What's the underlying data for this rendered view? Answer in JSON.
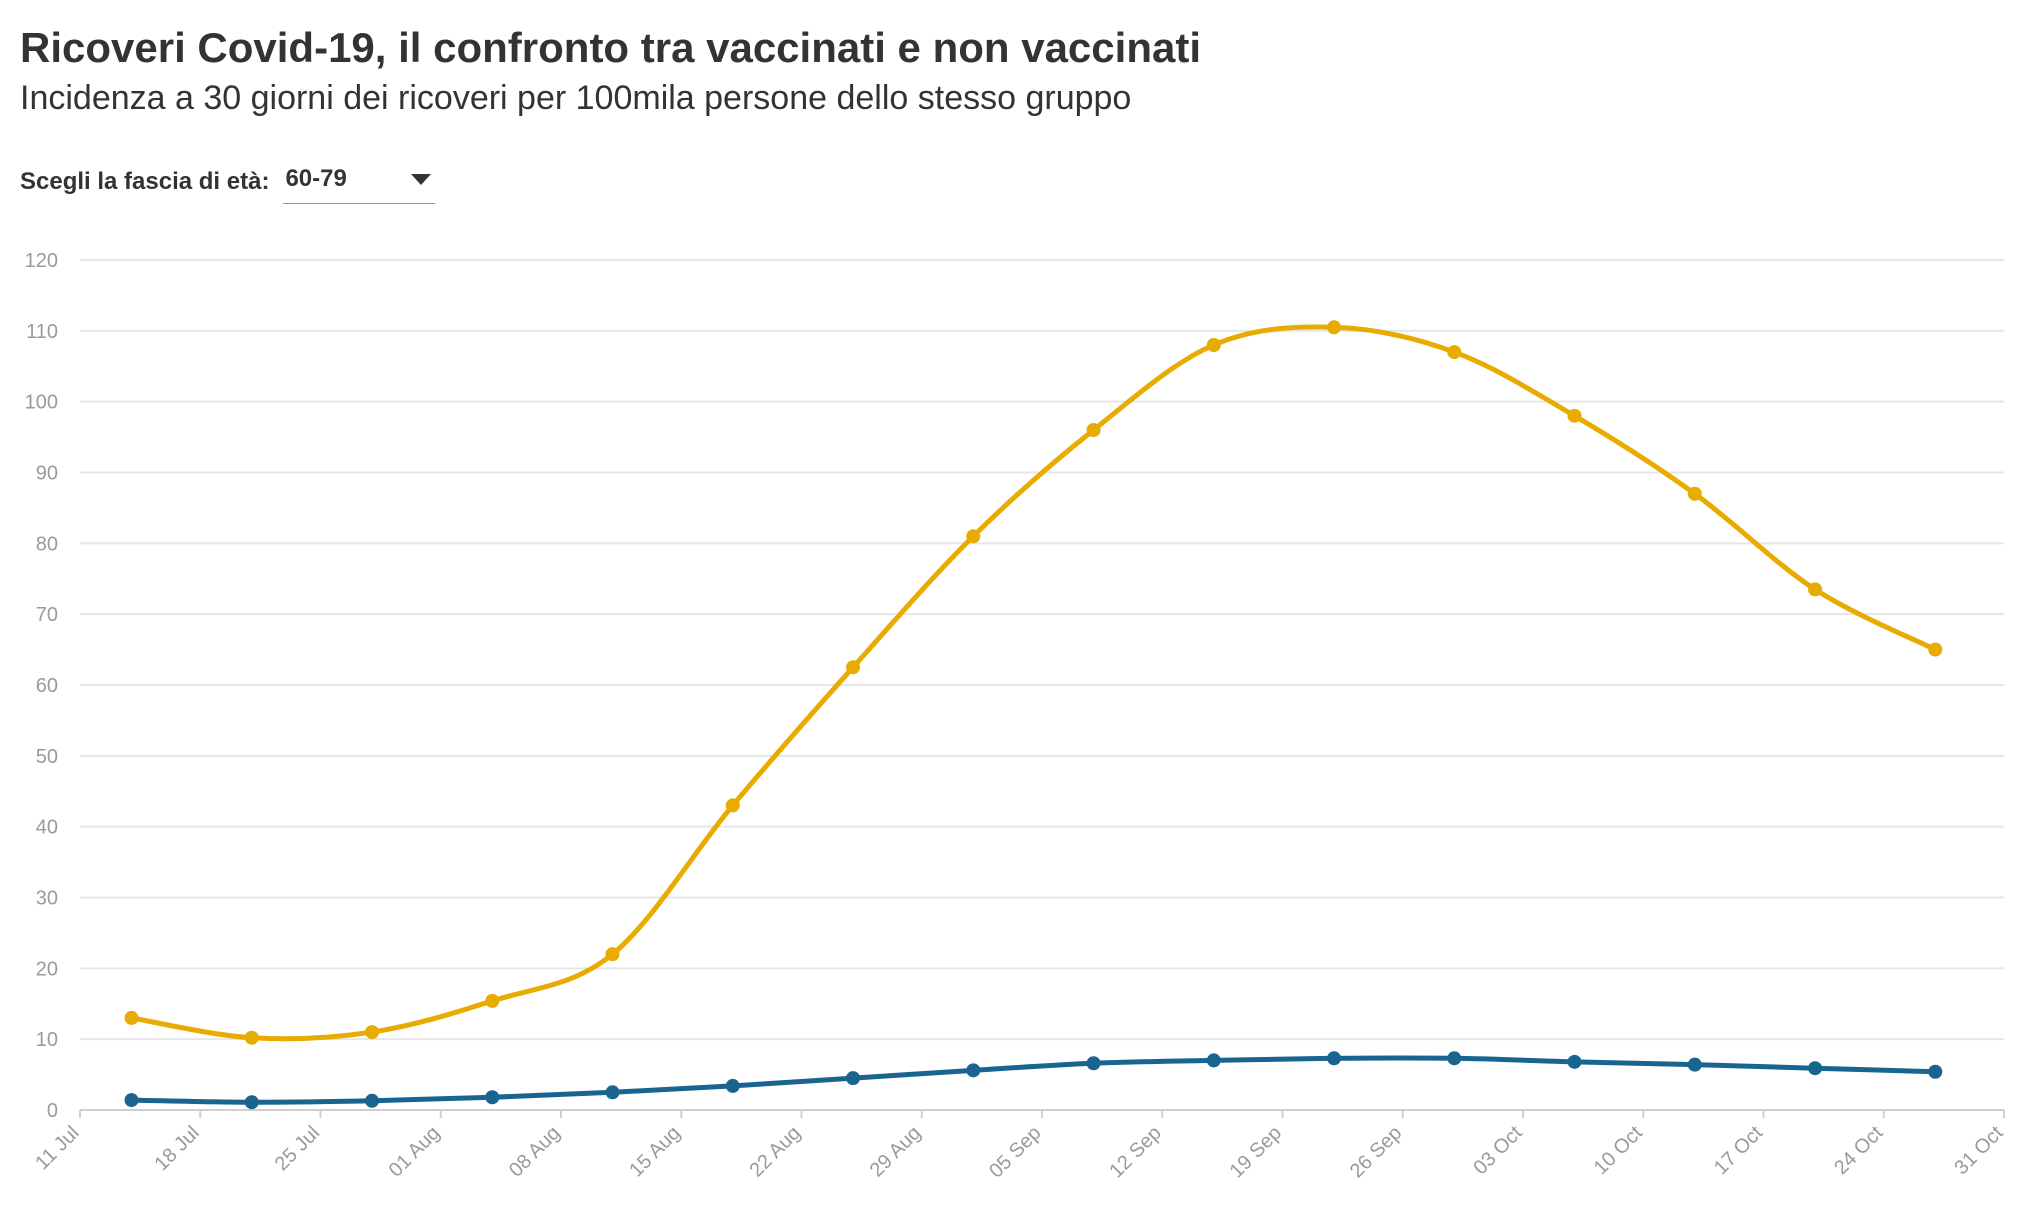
{
  "header": {
    "title": "Ricoveri Covid-19, il confronto tra vaccinati e non vaccinati",
    "subtitle": "Incidenza a 30 giorni dei ricoveri per 100mila persone dello stesso gruppo"
  },
  "control": {
    "label": "Scegli la fascia di età:",
    "selected": "60-79",
    "icon": "chevron-down-icon"
  },
  "colors": {
    "unvaccinated": "#e8ab00",
    "vaccinated": "#1a6490",
    "grid": "#e6e6e6",
    "axis": "#cfcfcf",
    "tick_text": "#9a9a9a"
  },
  "chart_data": {
    "type": "line",
    "x_axis": {
      "ticks": [
        "11 Jul",
        "18 Jul",
        "25 Jul",
        "01 Aug",
        "08 Aug",
        "15 Aug",
        "22 Aug",
        "29 Aug",
        "05 Sep",
        "12 Sep",
        "19 Sep",
        "26 Sep",
        "03 Oct",
        "10 Oct",
        "17 Oct",
        "24 Oct",
        "31 Oct"
      ],
      "range": [
        "2021-07-11",
        "2021-10-31"
      ]
    },
    "y_axis": {
      "range": [
        0,
        120
      ],
      "ticks": [
        0,
        10,
        20,
        30,
        40,
        50,
        60,
        70,
        80,
        90,
        100,
        110,
        120
      ]
    },
    "grid": true,
    "legend": "none",
    "x": [
      "2021-07-14",
      "2021-07-21",
      "2021-07-28",
      "2021-08-04",
      "2021-08-11",
      "2021-08-18",
      "2021-08-25",
      "2021-09-01",
      "2021-09-08",
      "2021-09-15",
      "2021-09-22",
      "2021-09-29",
      "2021-10-06",
      "2021-10-13",
      "2021-10-20",
      "2021-10-27"
    ],
    "series": [
      {
        "values": [
          13.0,
          10.2,
          11.0,
          15.4,
          22.0,
          43.0,
          62.5,
          81.0,
          96.0,
          108.0,
          110.5,
          107.0,
          98.0,
          87.0,
          73.5,
          65.0
        ]
      },
      {
        "values": [
          1.4,
          1.1,
          1.3,
          1.8,
          2.5,
          3.4,
          4.5,
          5.6,
          6.6,
          7.0,
          7.3,
          7.3,
          6.8,
          6.4,
          5.9,
          5.4
        ]
      }
    ]
  }
}
